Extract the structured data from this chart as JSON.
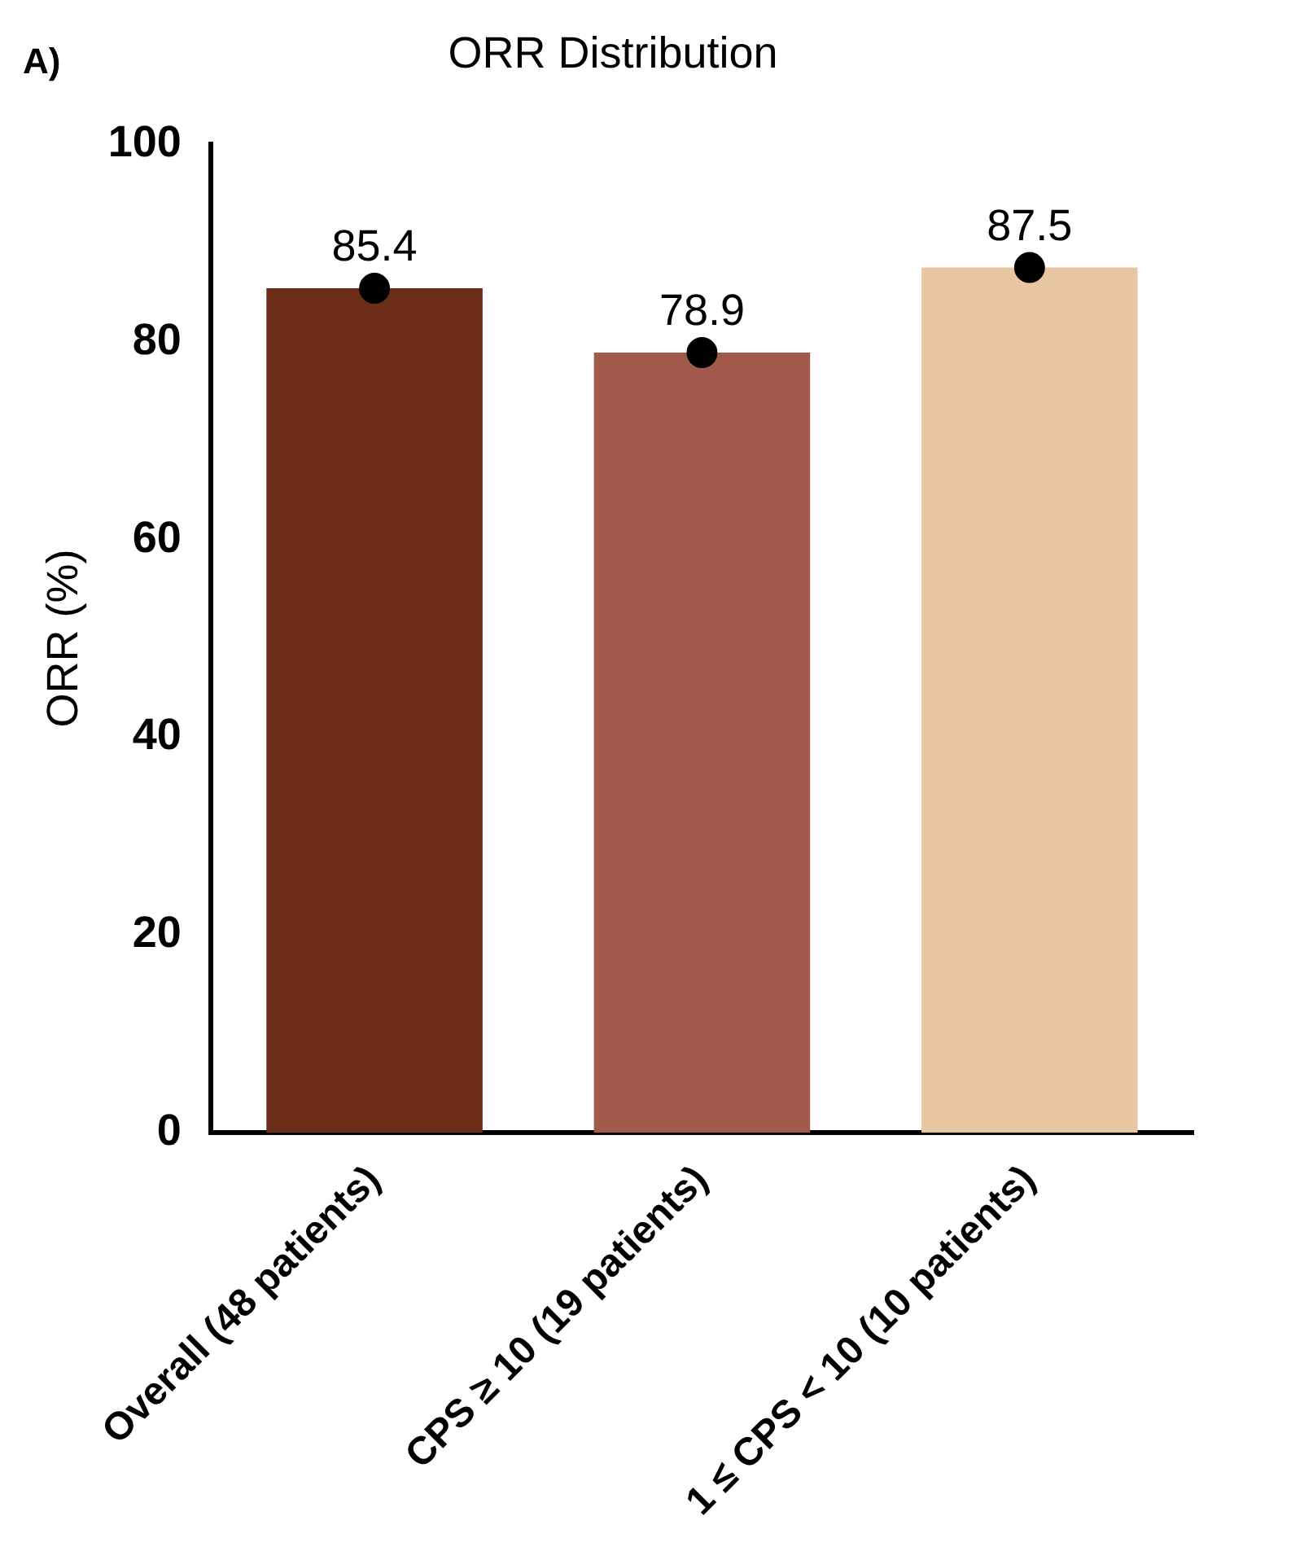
{
  "chart_data": {
    "type": "bar",
    "title": "ORR Distribution",
    "ylabel": "ORR (%)",
    "categories": [
      "Overall (48 patients)",
      "CPS ≥ 10 (19 patients)",
      "1 ≤ CPS < 10 (10 patients)"
    ],
    "series": [
      {
        "colors": [
          "#6b2d17",
          "#a0594b",
          "#e8c6a2"
        ],
        "values": [
          85.4,
          78.9,
          87.5
        ],
        "value_labels": [
          "85.4",
          "78.9",
          "87.5"
        ]
      },
      {
        "type": "scatter",
        "color": "#000000",
        "x": [
          "Overall (48 patients)",
          "CPS ≥ 10 (19 patients)",
          "1 ≤ CPS < 10 (10 patients)"
        ],
        "values": [
          85.4,
          78.9,
          87.5
        ]
      }
    ],
    "ylim": [
      0,
      100
    ],
    "yticks": [
      0,
      20,
      40,
      60,
      80,
      100
    ],
    "grid": false,
    "legend": false,
    "marker": "circle",
    "annotations": [
      "A)"
    ]
  }
}
